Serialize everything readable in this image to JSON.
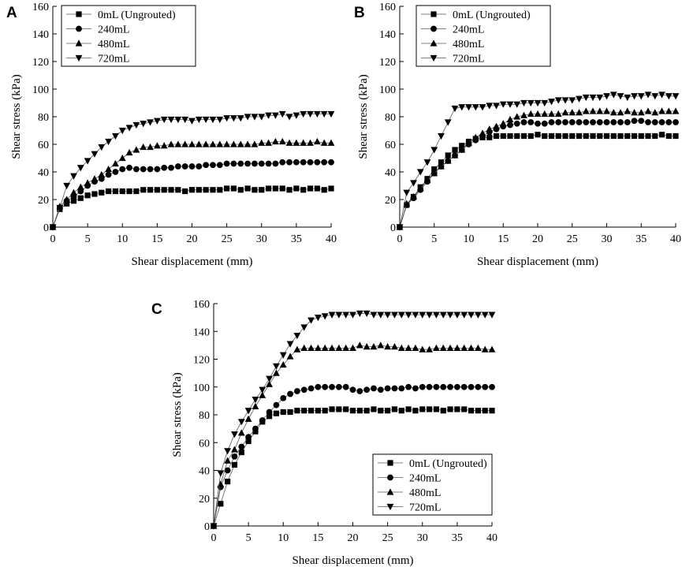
{
  "chart_data": [
    {
      "panel": "A",
      "type": "line",
      "xlabel": "Shear displacement (mm)",
      "ylabel": "Shear stress (kPa)",
      "xlim": [
        0,
        40
      ],
      "ylim": [
        0,
        160
      ],
      "xticks": [
        0,
        5,
        10,
        15,
        20,
        25,
        30,
        35,
        40
      ],
      "yticks": [
        0,
        20,
        40,
        60,
        80,
        100,
        120,
        140,
        160
      ],
      "legend_position": "top-left",
      "series": [
        {
          "name": "0mL (Ungrouted)",
          "marker": "square",
          "x": [
            0,
            1,
            2,
            3,
            4,
            5,
            6,
            7,
            8,
            9,
            10,
            11,
            12,
            13,
            14,
            15,
            16,
            17,
            18,
            19,
            20,
            21,
            22,
            23,
            24,
            25,
            26,
            27,
            28,
            29,
            30,
            31,
            32,
            33,
            34,
            35,
            36,
            37,
            38,
            39,
            40
          ],
          "y": [
            0,
            13,
            17,
            19,
            21,
            23,
            24,
            25,
            26,
            26,
            26,
            26,
            26,
            27,
            27,
            27,
            27,
            27,
            27,
            26,
            27,
            27,
            27,
            27,
            27,
            28,
            28,
            27,
            28,
            27,
            27,
            28,
            28,
            28,
            27,
            28,
            27,
            28,
            28,
            27,
            28
          ]
        },
        {
          "name": "240mL",
          "marker": "circle",
          "x": [
            0,
            1,
            2,
            3,
            4,
            5,
            6,
            7,
            8,
            9,
            10,
            11,
            12,
            13,
            14,
            15,
            16,
            17,
            18,
            19,
            20,
            21,
            22,
            23,
            24,
            25,
            26,
            27,
            28,
            29,
            30,
            31,
            32,
            33,
            34,
            35,
            36,
            37,
            38,
            39,
            40
          ],
          "y": [
            0,
            14,
            19,
            22,
            26,
            30,
            33,
            35,
            38,
            40,
            42,
            43,
            42,
            42,
            42,
            42,
            43,
            43,
            44,
            44,
            44,
            44,
            45,
            45,
            45,
            46,
            46,
            46,
            46,
            46,
            46,
            46,
            46,
            47,
            47,
            47,
            47,
            47,
            47,
            47,
            47
          ]
        },
        {
          "name": "480mL",
          "marker": "triangle-up",
          "x": [
            0,
            1,
            2,
            3,
            4,
            5,
            6,
            7,
            8,
            9,
            10,
            11,
            12,
            13,
            14,
            15,
            16,
            17,
            18,
            19,
            20,
            21,
            22,
            23,
            24,
            25,
            26,
            27,
            28,
            29,
            30,
            31,
            32,
            33,
            34,
            35,
            36,
            37,
            38,
            39,
            40
          ],
          "y": [
            0,
            15,
            20,
            25,
            29,
            32,
            35,
            38,
            42,
            46,
            50,
            54,
            56,
            58,
            58,
            59,
            59,
            60,
            60,
            60,
            60,
            60,
            60,
            60,
            60,
            60,
            60,
            60,
            60,
            60,
            61,
            61,
            62,
            62,
            61,
            61,
            61,
            61,
            62,
            61,
            61
          ]
        },
        {
          "name": "720mL",
          "marker": "triangle-down",
          "x": [
            0,
            1,
            2,
            3,
            4,
            5,
            6,
            7,
            8,
            9,
            10,
            11,
            12,
            13,
            14,
            15,
            16,
            17,
            18,
            19,
            20,
            21,
            22,
            23,
            24,
            25,
            26,
            27,
            28,
            29,
            30,
            31,
            32,
            33,
            34,
            35,
            36,
            37,
            38,
            39,
            40
          ],
          "y": [
            0,
            14,
            30,
            37,
            43,
            48,
            53,
            58,
            62,
            66,
            70,
            72,
            74,
            75,
            76,
            77,
            78,
            78,
            78,
            78,
            77,
            78,
            78,
            78,
            78,
            79,
            79,
            79,
            80,
            80,
            80,
            81,
            81,
            82,
            80,
            81,
            82,
            82,
            82,
            82,
            82
          ]
        }
      ]
    },
    {
      "panel": "B",
      "type": "line",
      "xlabel": "Shear displacement (mm)",
      "ylabel": "Shear stress (kPa)",
      "xlim": [
        0,
        40
      ],
      "ylim": [
        0,
        160
      ],
      "xticks": [
        0,
        5,
        10,
        15,
        20,
        25,
        30,
        35,
        40
      ],
      "yticks": [
        0,
        20,
        40,
        60,
        80,
        100,
        120,
        140,
        160
      ],
      "legend_position": "top-left",
      "series": [
        {
          "name": "0mL (Ungrouted)",
          "marker": "square",
          "x": [
            0,
            1,
            2,
            3,
            4,
            5,
            6,
            7,
            8,
            9,
            10,
            11,
            12,
            13,
            14,
            15,
            16,
            17,
            18,
            19,
            20,
            21,
            22,
            23,
            24,
            25,
            26,
            27,
            28,
            29,
            30,
            31,
            32,
            33,
            34,
            35,
            36,
            37,
            38,
            39,
            40
          ],
          "y": [
            0,
            16,
            22,
            29,
            35,
            42,
            47,
            52,
            56,
            59,
            62,
            64,
            65,
            65,
            66,
            66,
            66,
            66,
            66,
            66,
            67,
            66,
            66,
            66,
            66,
            66,
            66,
            66,
            66,
            66,
            66,
            66,
            66,
            66,
            66,
            66,
            66,
            66,
            67,
            66,
            66
          ]
        },
        {
          "name": "240mL",
          "marker": "circle",
          "x": [
            0,
            1,
            2,
            3,
            4,
            5,
            6,
            7,
            8,
            9,
            10,
            11,
            12,
            13,
            14,
            15,
            16,
            17,
            18,
            19,
            20,
            21,
            22,
            23,
            24,
            25,
            26,
            27,
            28,
            29,
            30,
            31,
            32,
            33,
            34,
            35,
            36,
            37,
            38,
            39,
            40
          ],
          "y": [
            0,
            16,
            21,
            27,
            33,
            39,
            44,
            48,
            52,
            56,
            60,
            63,
            66,
            69,
            71,
            73,
            74,
            75,
            76,
            76,
            75,
            75,
            76,
            76,
            76,
            76,
            76,
            76,
            76,
            76,
            76,
            76,
            76,
            76,
            77,
            77,
            76,
            76,
            76,
            76,
            76
          ]
        },
        {
          "name": "480mL",
          "marker": "triangle-up",
          "x": [
            0,
            1,
            2,
            3,
            4,
            5,
            6,
            7,
            8,
            9,
            10,
            11,
            12,
            13,
            14,
            15,
            16,
            17,
            18,
            19,
            20,
            21,
            22,
            23,
            24,
            25,
            26,
            27,
            28,
            29,
            30,
            31,
            32,
            33,
            34,
            35,
            36,
            37,
            38,
            39,
            40
          ],
          "y": [
            0,
            17,
            22,
            28,
            34,
            39,
            44,
            48,
            52,
            56,
            61,
            65,
            68,
            71,
            73,
            75,
            78,
            80,
            81,
            82,
            82,
            82,
            82,
            82,
            83,
            83,
            83,
            84,
            84,
            84,
            84,
            83,
            83,
            84,
            83,
            83,
            84,
            83,
            84,
            84,
            84
          ]
        },
        {
          "name": "720mL",
          "marker": "triangle-down",
          "x": [
            0,
            1,
            2,
            3,
            4,
            5,
            6,
            7,
            8,
            9,
            10,
            11,
            12,
            13,
            14,
            15,
            16,
            17,
            18,
            19,
            20,
            21,
            22,
            23,
            24,
            25,
            26,
            27,
            28,
            29,
            30,
            31,
            32,
            33,
            34,
            35,
            36,
            37,
            38,
            39,
            40
          ],
          "y": [
            0,
            25,
            32,
            40,
            47,
            56,
            66,
            76,
            86,
            87,
            87,
            87,
            87,
            88,
            88,
            89,
            89,
            89,
            90,
            90,
            90,
            90,
            91,
            92,
            92,
            92,
            93,
            94,
            94,
            94,
            95,
            96,
            95,
            94,
            95,
            95,
            96,
            95,
            96,
            95,
            95
          ]
        }
      ]
    },
    {
      "panel": "C",
      "type": "line",
      "xlabel": "Shear displacement (mm)",
      "ylabel": "Shear stress (kPa)",
      "xlim": [
        0,
        40
      ],
      "ylim": [
        0,
        160
      ],
      "xticks": [
        0,
        5,
        10,
        15,
        20,
        25,
        30,
        35,
        40
      ],
      "yticks": [
        0,
        20,
        40,
        60,
        80,
        100,
        120,
        140,
        160
      ],
      "legend_position": "bottom-right",
      "series": [
        {
          "name": "0mL (Ungrouted)",
          "marker": "square",
          "x": [
            0,
            1,
            2,
            3,
            4,
            5,
            6,
            7,
            8,
            9,
            10,
            11,
            12,
            13,
            14,
            15,
            16,
            17,
            18,
            19,
            20,
            21,
            22,
            23,
            24,
            25,
            26,
            27,
            28,
            29,
            30,
            31,
            32,
            33,
            34,
            35,
            36,
            37,
            38,
            39,
            40
          ],
          "y": [
            0,
            16,
            32,
            44,
            53,
            61,
            68,
            75,
            79,
            81,
            82,
            82,
            83,
            83,
            83,
            83,
            83,
            84,
            84,
            84,
            83,
            83,
            83,
            84,
            83,
            83,
            84,
            83,
            84,
            83,
            84,
            84,
            84,
            83,
            84,
            84,
            84,
            83,
            83,
            83,
            83
          ]
        },
        {
          "name": "240mL",
          "marker": "circle",
          "x": [
            0,
            1,
            2,
            3,
            4,
            5,
            6,
            7,
            8,
            9,
            10,
            11,
            12,
            13,
            14,
            15,
            16,
            17,
            18,
            19,
            20,
            21,
            22,
            23,
            24,
            25,
            26,
            27,
            28,
            29,
            30,
            31,
            32,
            33,
            34,
            35,
            36,
            37,
            38,
            39,
            40
          ],
          "y": [
            0,
            28,
            40,
            50,
            57,
            64,
            70,
            76,
            82,
            87,
            92,
            95,
            97,
            98,
            99,
            100,
            100,
            100,
            100,
            100,
            98,
            97,
            98,
            99,
            98,
            99,
            99,
            99,
            100,
            99,
            100,
            100,
            100,
            100,
            100,
            100,
            100,
            100,
            100,
            100,
            100
          ]
        },
        {
          "name": "480mL",
          "marker": "triangle-up",
          "x": [
            0,
            1,
            2,
            3,
            4,
            5,
            6,
            7,
            8,
            9,
            10,
            11,
            12,
            13,
            14,
            15,
            16,
            17,
            18,
            19,
            20,
            21,
            22,
            23,
            24,
            25,
            26,
            27,
            28,
            29,
            30,
            31,
            32,
            33,
            34,
            35,
            36,
            37,
            38,
            39,
            40
          ],
          "y": [
            0,
            30,
            47,
            55,
            67,
            77,
            86,
            94,
            102,
            110,
            116,
            122,
            127,
            128,
            128,
            128,
            128,
            128,
            128,
            128,
            128,
            130,
            129,
            129,
            130,
            129,
            129,
            128,
            128,
            128,
            127,
            127,
            128,
            128,
            128,
            128,
            128,
            128,
            128,
            127,
            127
          ]
        },
        {
          "name": "720mL",
          "marker": "triangle-down",
          "x": [
            0,
            1,
            2,
            3,
            4,
            5,
            6,
            7,
            8,
            9,
            10,
            11,
            12,
            13,
            14,
            15,
            16,
            17,
            18,
            19,
            20,
            21,
            22,
            23,
            24,
            25,
            26,
            27,
            28,
            29,
            30,
            31,
            32,
            33,
            34,
            35,
            36,
            37,
            38,
            39,
            40
          ],
          "y": [
            0,
            38,
            54,
            66,
            75,
            83,
            91,
            98,
            106,
            115,
            123,
            131,
            137,
            143,
            148,
            150,
            151,
            152,
            152,
            152,
            152,
            153,
            153,
            152,
            152,
            152,
            152,
            152,
            152,
            152,
            152,
            152,
            152,
            152,
            152,
            152,
            152,
            152,
            152,
            152,
            152
          ]
        }
      ]
    }
  ]
}
